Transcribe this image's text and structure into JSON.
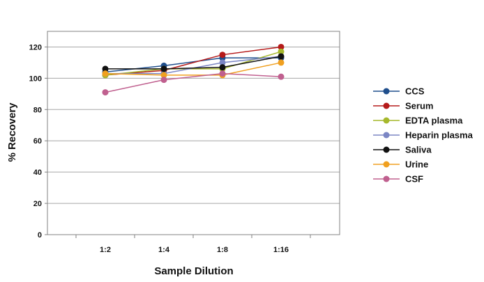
{
  "chart_data": {
    "type": "line",
    "categories": [
      "1:2",
      "1:4",
      "1:8",
      "1:16"
    ],
    "xlabel": "Sample Dilution",
    "ylabel": "% Recovery",
    "ylim": [
      0,
      130
    ],
    "yticks": [
      0,
      20,
      40,
      60,
      80,
      100,
      120
    ],
    "grid": "y-major",
    "legend": "right",
    "series": [
      {
        "name": "CCS",
        "color": "#1f4e8c",
        "values": [
          104,
          108,
          113,
          113
        ]
      },
      {
        "name": "Serum",
        "color": "#b51a1a",
        "values": [
          102,
          105,
          115,
          120
        ]
      },
      {
        "name": "EDTA plasma",
        "color": "#a6b82c",
        "values": [
          102,
          106,
          106,
          117
        ]
      },
      {
        "name": "Heparin plasma",
        "color": "#7b86c4",
        "values": [
          103,
          103,
          110,
          114
        ]
      },
      {
        "name": "Saliva",
        "color": "#111111",
        "values": [
          106,
          106,
          107,
          114
        ]
      },
      {
        "name": "Urine",
        "color": "#f0a020",
        "values": [
          103,
          102,
          102,
          110
        ]
      },
      {
        "name": "CSF",
        "color": "#c0608f",
        "values": [
          91,
          99,
          103,
          101
        ]
      }
    ]
  }
}
